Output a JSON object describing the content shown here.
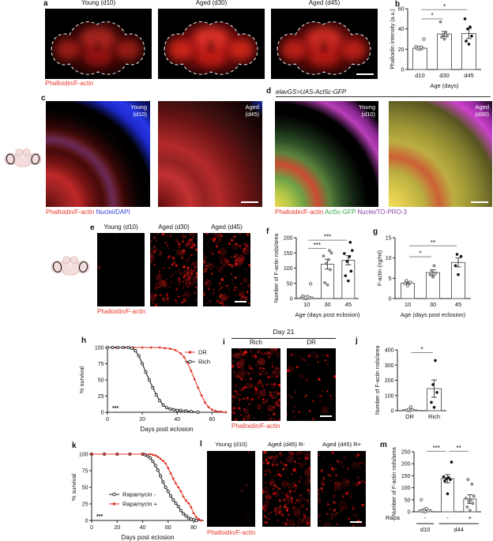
{
  "figure": {
    "panel_a": {
      "label": "a",
      "titles": [
        "Young (d10)",
        "Aged (d30)",
        "Aged (d45)"
      ],
      "caption": "Phalloidin/F-actin"
    },
    "panel_b": {
      "label": "b"
    },
    "panel_c": {
      "label": "c",
      "image_labels": [
        [
          "Young",
          "(d10)"
        ],
        [
          "Aged",
          "(d45)"
        ]
      ],
      "caption": {
        "red": "Phalloidin/F-actin",
        "blue": " Nuclei/DAPI"
      }
    },
    "panel_d": {
      "label": "d",
      "title": "elavGS>UAS-Act5c-GFP",
      "image_labels": [
        [
          "Young",
          "(d10)"
        ],
        [
          "Aged",
          "(d30)"
        ]
      ],
      "caption": {
        "red": "Phalloidin/F-actin ",
        "green": "Act5c-GFP ",
        "purple": "Nuclei/TO-PRO-3"
      }
    },
    "panel_e": {
      "label": "e",
      "titles": [
        "Young (d10)",
        "Aged (d30)",
        "Aged (d45)"
      ],
      "caption": "Phalloidin/F-actin"
    },
    "panel_f": {
      "label": "f"
    },
    "panel_g": {
      "label": "g"
    },
    "panel_h": {
      "label": "h"
    },
    "panel_i": {
      "label": "i",
      "group_title": "Day 21",
      "titles": [
        "Rich",
        "DR"
      ],
      "caption": "Phalloidin/F-actin"
    },
    "panel_j": {
      "label": "j"
    },
    "panel_k": {
      "label": "k"
    },
    "panel_l": {
      "label": "l",
      "titles": [
        "Young (d10)",
        "Aged (d45) R-",
        "Aged (d45) R+"
      ],
      "caption": "Phalloidin/F-actin"
    },
    "panel_m": {
      "label": "m"
    }
  },
  "icons": {
    "fly_brain": "fly-brain-icon"
  },
  "colors": {
    "label_red": "#e8392b",
    "label_green": "#3aa544",
    "label_blue": "#3540d6",
    "label_purple": "#8a46a8",
    "survival_red": "#e0372b",
    "survival_black": "#222222"
  },
  "chart_data": [
    {
      "id": "b",
      "type": "bar",
      "ylabel": "Phalloidin intensity (a.u.)",
      "xlabel": "Age (days)",
      "categories": [
        "d10",
        "d30",
        "d45"
      ],
      "values": [
        21,
        35,
        35.5
      ],
      "errors": [
        1,
        2.5,
        5
      ],
      "points": [
        [
          20,
          20.5,
          21,
          21.5,
          22,
          22.5,
          30
        ],
        [
          30,
          32,
          33,
          34.5,
          36,
          47
        ],
        [
          25,
          28,
          33,
          40,
          42,
          50
        ]
      ],
      "point_styles": [
        "open",
        "gray",
        "black"
      ],
      "ylim": [
        0,
        60
      ],
      "yticks": [
        0,
        20,
        40,
        60
      ],
      "sig": [
        {
          "a": 0,
          "b": 1,
          "y": 50,
          "label": "*"
        },
        {
          "a": 0,
          "b": 2,
          "y": 59,
          "label": "*"
        }
      ]
    },
    {
      "id": "f",
      "type": "bar",
      "ylabel": "Number of F-actin rods/area",
      "xlabel": "Age (days post eclosion)",
      "categories": [
        "10",
        "30",
        "45"
      ],
      "values": [
        5,
        113,
        126
      ],
      "errors": [
        3,
        16,
        15
      ],
      "points": [
        [
          0,
          1,
          2,
          4,
          6,
          8,
          48
        ],
        [
          45,
          52,
          95,
          115,
          128,
          140,
          150,
          158
        ],
        [
          58,
          75,
          90,
          122,
          138,
          148,
          158,
          185
        ]
      ],
      "point_styles": [
        "open",
        "gray",
        "black"
      ],
      "ylim": [
        0,
        200
      ],
      "yticks": [
        0,
        50,
        100,
        150,
        200
      ],
      "sig": [
        {
          "a": 0,
          "b": 1,
          "y": 165,
          "label": "***"
        },
        {
          "a": 0,
          "b": 2,
          "y": 192,
          "label": "***"
        }
      ]
    },
    {
      "id": "g",
      "type": "bar",
      "ylabel": "F-actin (ng/ml)",
      "xlabel": "Age (days post eclosion)",
      "categories": [
        "10",
        "30",
        "45"
      ],
      "values": [
        3.8,
        6.4,
        8.9
      ],
      "errors": [
        0.3,
        0.7,
        1.1
      ],
      "points": [
        [
          3.2,
          3.7,
          4.0,
          4.4
        ],
        [
          5.3,
          5.9,
          6.3,
          6.9,
          8.1
        ],
        [
          5.9,
          8.1,
          10.4,
          10.9
        ]
      ],
      "point_styles": [
        "open",
        "gray",
        "black"
      ],
      "ylim": [
        0,
        15
      ],
      "yticks": [
        0,
        5,
        10,
        15
      ],
      "sig": [
        {
          "a": 0,
          "b": 1,
          "y": 10.3,
          "label": "*"
        },
        {
          "a": 0,
          "b": 2,
          "y": 13,
          "label": "**"
        }
      ]
    },
    {
      "id": "j",
      "type": "bar",
      "ylabel": "Number of F-actin rods/area",
      "xlabel": "",
      "categories": [
        "DR",
        "Rich"
      ],
      "values": [
        6,
        145
      ],
      "errors": [
        3,
        57
      ],
      "points": [
        [
          1,
          3,
          5,
          8,
          25
        ],
        [
          22,
          55,
          120,
          172,
          330
        ]
      ],
      "point_styles": [
        "open",
        "black"
      ],
      "ylim": [
        0,
        400
      ],
      "yticks": [
        0,
        100,
        200,
        300,
        400
      ],
      "sig": [
        {
          "a": 0,
          "b": 1,
          "y": 382,
          "label": "*"
        }
      ]
    },
    {
      "id": "m",
      "type": "bar",
      "ylabel": "Number of F-actin rods/area",
      "xlabel": "",
      "categories": [
        "-",
        "-",
        "+"
      ],
      "row_label": "Rapa",
      "groups": [
        {
          "label": "d10",
          "from": 0,
          "to": 0
        },
        {
          "label": "d44",
          "from": 1,
          "to": 2
        }
      ],
      "values": [
        8,
        138,
        53
      ],
      "errors": [
        4,
        17,
        18
      ],
      "points": [
        [
          0,
          2,
          5,
          9,
          13,
          50
        ],
        [
          75,
          128,
          134,
          138,
          142,
          146,
          207
        ],
        [
          6,
          20,
          35,
          44,
          50,
          56,
          65,
          115,
          134
        ]
      ],
      "point_styles": [
        "open",
        "black",
        "gray"
      ],
      "ylim": [
        0,
        250
      ],
      "yticks": [
        0,
        50,
        100,
        150,
        200,
        250
      ],
      "sig": [
        {
          "a": 0,
          "b": 1,
          "y": 252,
          "label": "***"
        },
        {
          "a": 1,
          "b": 2,
          "y": 252,
          "label": "**"
        }
      ]
    },
    {
      "id": "h",
      "type": "line",
      "ylabel": "% survival",
      "xlabel": "Days post eclosion",
      "sig": "***",
      "xlim": [
        0,
        68
      ],
      "ylim": [
        0,
        100
      ],
      "xticks": [
        0,
        20,
        40,
        60
      ],
      "yticks": [
        0,
        25,
        50,
        75,
        100
      ],
      "series": [
        {
          "name": "DR",
          "color": "red",
          "marker": "filled",
          "x": [
            0,
            5,
            10,
            15,
            20,
            25,
            30,
            33,
            36,
            39,
            42,
            44,
            46,
            48,
            50,
            52,
            54,
            56,
            58,
            60,
            62,
            65,
            68
          ],
          "y": [
            100,
            100,
            100,
            100,
            100,
            100,
            100,
            99,
            98,
            96,
            91,
            85,
            76,
            64,
            51,
            38,
            26,
            15,
            8,
            4,
            2,
            1,
            0
          ]
        },
        {
          "name": "Rich",
          "color": "black",
          "marker": "open",
          "x": [
            0,
            3,
            6,
            9,
            12,
            14,
            16,
            18,
            20,
            22,
            24,
            26,
            28,
            30,
            32,
            34,
            36,
            38,
            40,
            42,
            45,
            48,
            52
          ],
          "y": [
            100,
            100,
            100,
            100,
            100,
            99,
            95,
            87,
            75,
            62,
            50,
            38,
            27,
            18,
            11,
            7,
            5,
            4,
            3,
            3,
            2,
            1,
            0
          ]
        }
      ]
    },
    {
      "id": "k",
      "type": "line",
      "ylabel": "% survival",
      "xlabel": "Days post eclosion",
      "sig": "***",
      "xlim": [
        0,
        88
      ],
      "ylim": [
        0,
        100
      ],
      "xticks": [
        0,
        20,
        40,
        60,
        80
      ],
      "yticks": [
        0,
        25,
        50,
        75,
        100
      ],
      "series": [
        {
          "name": "Rapamycin -",
          "color": "black",
          "marker": "open",
          "x": [
            0,
            10,
            20,
            30,
            40,
            42,
            44,
            46,
            48,
            50,
            52,
            54,
            56,
            58,
            60,
            62,
            64,
            66,
            68,
            70,
            72,
            74,
            76,
            78,
            80,
            82
          ],
          "y": [
            100,
            100,
            100,
            100,
            100,
            99,
            97,
            94,
            89,
            83,
            76,
            67,
            58,
            50,
            44,
            37,
            31,
            26,
            21,
            15,
            10,
            7,
            4,
            2,
            1,
            0
          ]
        },
        {
          "name": "Rapamycin +",
          "color": "red",
          "marker": "filled",
          "x": [
            0,
            10,
            20,
            30,
            40,
            46,
            48,
            50,
            52,
            54,
            56,
            58,
            60,
            62,
            64,
            66,
            68,
            70,
            72,
            74,
            76,
            78,
            80,
            82,
            84,
            86
          ],
          "y": [
            100,
            100,
            100,
            100,
            100,
            100,
            99,
            98,
            96,
            93,
            90,
            86,
            79,
            71,
            63,
            56,
            50,
            44,
            36,
            30,
            26,
            20,
            11,
            5,
            2,
            0
          ]
        }
      ]
    }
  ]
}
